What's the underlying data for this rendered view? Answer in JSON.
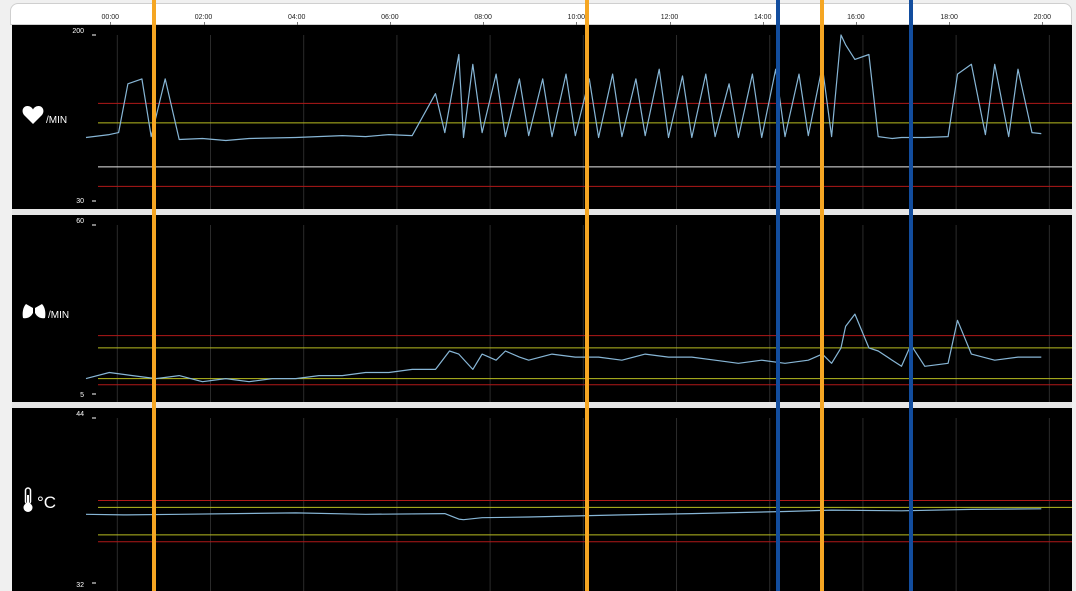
{
  "time_axis": {
    "ticks": [
      "00:00",
      "02:00",
      "04:00",
      "06:00",
      "08:00",
      "10:00",
      "12:00",
      "14:00",
      "16:00",
      "18:00",
      "20:00"
    ]
  },
  "colors": {
    "signal": "#87b6d6",
    "red_limit": "#b01818",
    "yellow_limit": "#b8bd20",
    "white_line": "#e8e8e8",
    "marker_orange": "#f5a623",
    "marker_blue": "#124d9e",
    "gridline": "#2b2b2b"
  },
  "icons": {
    "heart_rate": "heart-icon",
    "respiration": "lungs-icon",
    "temperature": "thermometer-icon"
  },
  "panels": [
    {
      "id": "heart",
      "unit": "/MIN",
      "ymin_label": "30",
      "ymax_label": "200"
    },
    {
      "id": "resp",
      "unit": "/MIN",
      "ymin_label": "5",
      "ymax_label": "60"
    },
    {
      "id": "temp",
      "unit": "°C",
      "ymin_label": "32",
      "ymax_label": "44"
    }
  ],
  "chart_data": [
    {
      "type": "line",
      "xlabel": "",
      "ylabel": "",
      "ylim": [
        30,
        200
      ],
      "x_unit": "hour",
      "xlim": [
        -0.5,
        20.1
      ],
      "thresholds": [
        {
          "value": 130,
          "color": "red"
        },
        {
          "value": 110,
          "color": "yellow"
        },
        {
          "value": 65,
          "color": "white"
        },
        {
          "value": 45,
          "color": "red"
        }
      ],
      "series": [
        {
          "x": [
            -0.5,
            0,
            0.2,
            0.4,
            0.7,
            0.9,
            1.2,
            1.5,
            2,
            2.5,
            3,
            4,
            5,
            5.5,
            6,
            6.5,
            7,
            7.2,
            7.5,
            7.6,
            7.8,
            8,
            8.3,
            8.5,
            8.8,
            9,
            9.3,
            9.5,
            9.8,
            10,
            10.3,
            10.5,
            10.8,
            11,
            11.3,
            11.5,
            11.8,
            12,
            12.3,
            12.5,
            12.8,
            13,
            13.3,
            13.5,
            13.8,
            14,
            14.3,
            14.5,
            14.8,
            15,
            15.3,
            15.5,
            15.7,
            15.8,
            16,
            16.3,
            16.5,
            16.8,
            17,
            17.5,
            18,
            18.2,
            18.5,
            18.8,
            19,
            19.3,
            19.5,
            19.8,
            20
          ],
          "y": [
            95,
            98,
            100,
            150,
            155,
            96,
            155,
            93,
            94,
            92,
            94,
            95,
            97,
            96,
            98,
            97,
            140,
            100,
            180,
            95,
            170,
            100,
            160,
            96,
            155,
            97,
            155,
            96,
            160,
            97,
            155,
            95,
            160,
            96,
            155,
            97,
            165,
            95,
            158,
            95,
            160,
            96,
            150,
            95,
            160,
            95,
            165,
            96,
            160,
            97,
            168,
            96,
            200,
            190,
            175,
            180,
            96,
            94,
            95,
            95,
            96,
            160,
            170,
            98,
            170,
            96,
            165,
            100,
            99
          ]
        }
      ]
    },
    {
      "type": "line",
      "xlabel": "",
      "ylabel": "",
      "ylim": [
        5,
        60
      ],
      "x_unit": "hour",
      "xlim": [
        -0.5,
        20.1
      ],
      "thresholds": [
        {
          "value": 24,
          "color": "red"
        },
        {
          "value": 20,
          "color": "yellow"
        },
        {
          "value": 10,
          "color": "yellow"
        },
        {
          "value": 8,
          "color": "red"
        }
      ],
      "series": [
        {
          "x": [
            -0.5,
            0,
            0.5,
            1,
            1.5,
            2,
            2.5,
            3,
            3.5,
            4,
            4.5,
            5,
            5.5,
            6,
            6.5,
            7,
            7.3,
            7.5,
            7.8,
            8,
            8.3,
            8.5,
            8.8,
            9,
            9.5,
            10,
            10.5,
            11,
            11.5,
            12,
            12.5,
            13,
            13.5,
            14,
            14.5,
            15,
            15.3,
            15.5,
            15.7,
            15.8,
            16,
            16.3,
            16.5,
            16.8,
            17,
            17.2,
            17.5,
            18,
            18.2,
            18.5,
            19,
            19.5,
            20
          ],
          "y": [
            10,
            12,
            11,
            10,
            11,
            9,
            10,
            9,
            10,
            10,
            11,
            11,
            12,
            12,
            13,
            13,
            19,
            18,
            13,
            18,
            16,
            19,
            17,
            16,
            18,
            17,
            17,
            16,
            18,
            17,
            17,
            16,
            15,
            16,
            15,
            16,
            18,
            15,
            20,
            27,
            31,
            20,
            19,
            16,
            14,
            21,
            14,
            15,
            29,
            18,
            16,
            17,
            17
          ]
        }
      ]
    },
    {
      "type": "line",
      "xlabel": "",
      "ylabel": "",
      "ylim": [
        32,
        44
      ],
      "x_unit": "hour",
      "xlim": [
        -0.5,
        20.1
      ],
      "thresholds": [
        {
          "value": 38.0,
          "color": "red"
        },
        {
          "value": 37.5,
          "color": "yellow"
        },
        {
          "value": 35.5,
          "color": "yellow"
        },
        {
          "value": 35.0,
          "color": "red"
        }
      ],
      "series": [
        {
          "x": [
            -0.5,
            0.3,
            1.5,
            4,
            5.5,
            7.2,
            7.5,
            7.6,
            8,
            9,
            11,
            12.5,
            14.5,
            15.5,
            17,
            18.5,
            20
          ],
          "y": [
            37.0,
            36.95,
            37.0,
            37.1,
            37.0,
            37.05,
            36.65,
            36.6,
            36.75,
            36.8,
            36.95,
            37.05,
            37.2,
            37.3,
            37.25,
            37.35,
            37.4
          ]
        }
      ]
    }
  ],
  "markers": [
    {
      "x": 0.95,
      "color": "orange"
    },
    {
      "x": 10.25,
      "color": "orange"
    },
    {
      "x": 14.35,
      "color": "blue"
    },
    {
      "x": 15.3,
      "color": "orange"
    },
    {
      "x": 17.2,
      "color": "blue"
    }
  ]
}
